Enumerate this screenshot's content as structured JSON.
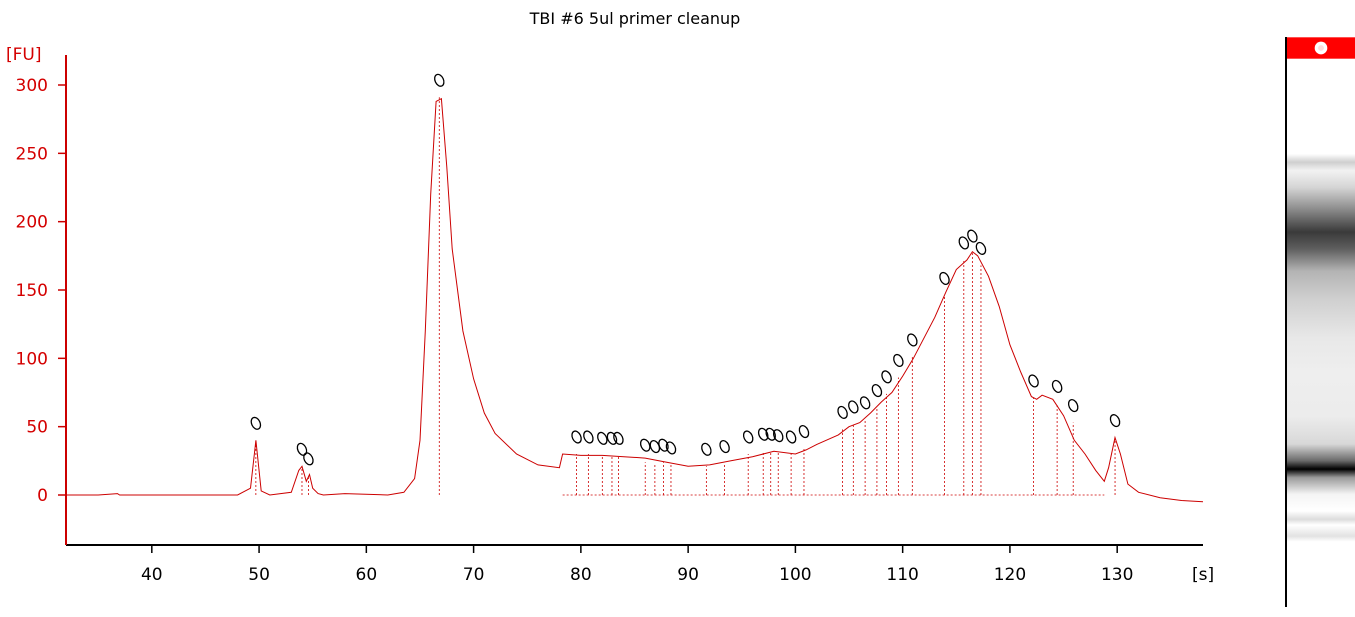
{
  "chart_data": {
    "type": "line",
    "title": "TBI #6 5ul primer cleanup",
    "ylabel": "[FU]",
    "xlabel": "[s]",
    "xlim": [
      32,
      138
    ],
    "ylim": [
      -35,
      320
    ],
    "x_ticks": [
      40,
      50,
      60,
      70,
      80,
      90,
      100,
      110,
      120,
      130
    ],
    "y_ticks": [
      0,
      50,
      100,
      150,
      200,
      250,
      300
    ],
    "series": [
      {
        "x": [
          32,
          35,
          36.8,
          37,
          48,
          49.2,
          49.7,
          50.2,
          51,
          53,
          53.7,
          54,
          54.4,
          54.7,
          55,
          55.5,
          56,
          58,
          62,
          63.5,
          64.5,
          65,
          65.5,
          66,
          66.5,
          67,
          67.5,
          68,
          69,
          70,
          71,
          72,
          74,
          76,
          78,
          78.3,
          80,
          82,
          84,
          86,
          88,
          90,
          92,
          94,
          96,
          98,
          100,
          101,
          102,
          104,
          105,
          106,
          107,
          108,
          109,
          110,
          111,
          112,
          113,
          114,
          115,
          116,
          116.5,
          117,
          118,
          119,
          120,
          121,
          122,
          122.5,
          123,
          124,
          125,
          126,
          127,
          128,
          128.8,
          129.2,
          129.8,
          130.3,
          131,
          132,
          134,
          136,
          138
        ],
        "y": [
          0,
          0,
          1,
          0,
          0,
          5,
          40,
          3,
          0,
          2,
          18,
          21,
          10,
          15,
          5,
          1,
          0,
          1,
          0,
          2,
          12,
          40,
          120,
          220,
          288,
          290,
          240,
          180,
          120,
          85,
          60,
          45,
          30,
          22,
          20,
          30,
          29,
          29,
          28,
          27,
          24,
          21,
          22,
          25,
          28,
          32,
          30,
          33,
          37,
          44,
          50,
          53,
          60,
          68,
          75,
          87,
          100,
          115,
          130,
          148,
          165,
          172,
          178,
          175,
          160,
          138,
          110,
          90,
          72,
          70,
          73,
          70,
          58,
          40,
          30,
          18,
          10,
          20,
          42,
          30,
          8,
          2,
          -2,
          -4,
          -5
        ]
      }
    ],
    "peak_markers": [
      {
        "x": 49.7,
        "y": 40
      },
      {
        "x": 54.0,
        "y": 21
      },
      {
        "x": 54.6,
        "y": 14
      },
      {
        "x": 66.8,
        "y": 291
      },
      {
        "x": 79.6,
        "y": 30
      },
      {
        "x": 80.7,
        "y": 30
      },
      {
        "x": 82.0,
        "y": 29
      },
      {
        "x": 82.9,
        "y": 29
      },
      {
        "x": 83.5,
        "y": 29
      },
      {
        "x": 86.0,
        "y": 24
      },
      {
        "x": 86.9,
        "y": 23
      },
      {
        "x": 87.7,
        "y": 24
      },
      {
        "x": 88.4,
        "y": 22
      },
      {
        "x": 91.7,
        "y": 21
      },
      {
        "x": 93.4,
        "y": 23
      },
      {
        "x": 95.6,
        "y": 30
      },
      {
        "x": 97.0,
        "y": 32
      },
      {
        "x": 97.7,
        "y": 32
      },
      {
        "x": 98.4,
        "y": 31
      },
      {
        "x": 99.6,
        "y": 30
      },
      {
        "x": 100.8,
        "y": 34
      },
      {
        "x": 104.4,
        "y": 48
      },
      {
        "x": 105.4,
        "y": 52
      },
      {
        "x": 106.5,
        "y": 55
      },
      {
        "x": 107.6,
        "y": 64
      },
      {
        "x": 108.5,
        "y": 74
      },
      {
        "x": 109.6,
        "y": 86
      },
      {
        "x": 110.9,
        "y": 101
      },
      {
        "x": 113.9,
        "y": 146
      },
      {
        "x": 115.7,
        "y": 172
      },
      {
        "x": 116.5,
        "y": 177
      },
      {
        "x": 117.3,
        "y": 168
      },
      {
        "x": 122.2,
        "y": 71
      },
      {
        "x": 124.4,
        "y": 67
      },
      {
        "x": 125.9,
        "y": 53
      },
      {
        "x": 129.8,
        "y": 42
      }
    ],
    "grid": false
  },
  "gel": {
    "marker_color": "#ff0000"
  }
}
